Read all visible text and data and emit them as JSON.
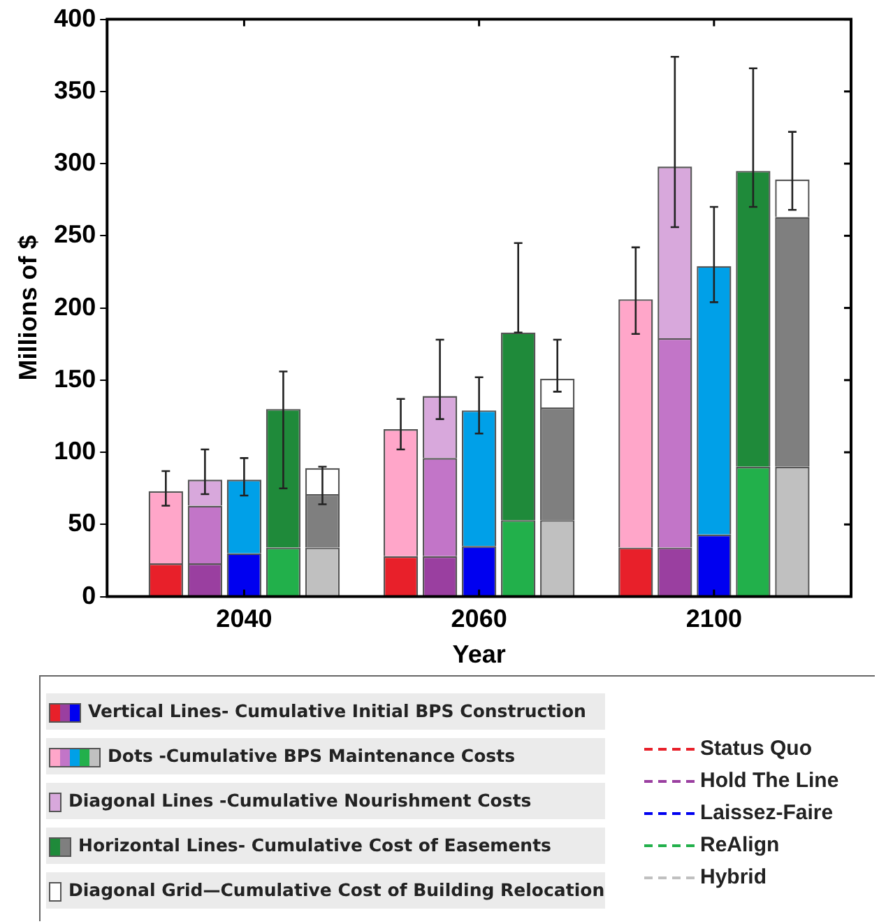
{
  "chart_data": {
    "type": "bar",
    "stacked": true,
    "ylabel": "Millions of $",
    "xlabel": "Year",
    "categories": [
      null,
      null,
      null,
      "2040",
      null,
      null,
      null,
      null,
      null,
      "2060",
      null,
      null,
      null,
      null,
      null,
      "2100",
      null,
      null,
      null
    ],
    "ylim": [
      0,
      400
    ],
    "yticks": [
      0,
      50,
      100,
      150,
      200,
      250,
      300,
      350,
      400
    ],
    "grid": false,
    "legend": "bottom",
    "series": [
      {
        "name": "Vertical Lines- Cumulative Initial BPS Construction",
        "values": [
          null,
          23,
          23,
          30,
          null,
          null,
          null,
          28,
          28,
          35,
          null,
          null,
          null,
          34,
          34,
          43,
          null,
          null,
          null
        ],
        "colors": [
          null,
          "#e8202a",
          "#9a3fa0",
          "#0000f0",
          null,
          null,
          null,
          "#e8202a",
          "#9a3fa0",
          "#0000f0",
          null,
          null,
          null,
          "#e8202a",
          "#9a3fa0",
          "#0000f0",
          null,
          null,
          null
        ]
      },
      {
        "name": "Dots  -Cumulative BPS Maintenance Costs",
        "values": [
          null,
          50,
          40,
          51,
          34,
          34,
          null,
          88,
          68,
          94,
          53,
          53,
          null,
          172,
          145,
          186,
          90,
          90,
          null
        ],
        "colors": [
          null,
          "#ffa6c9",
          "#c275c8",
          "#00a0e8",
          "#22b04b",
          "#c0c0c0",
          null,
          "#ffa6c9",
          "#c275c8",
          "#00a0e8",
          "#22b04b",
          "#c0c0c0",
          null,
          "#ffa6c9",
          "#c275c8",
          "#00a0e8",
          "#22b04b",
          "#c0c0c0",
          null
        ],
        "errors": [
          null,
          [
            63,
            87
          ],
          null,
          [
            70,
            96
          ],
          null,
          null,
          null,
          [
            102,
            137
          ],
          null,
          [
            113,
            152
          ],
          null,
          null,
          null,
          [
            182,
            242
          ],
          null,
          [
            204,
            270
          ],
          null,
          null,
          null
        ]
      },
      {
        "name": "Diagonal Lines -Cumulative Nourishment Costs",
        "values": [
          null,
          null,
          18,
          null,
          null,
          null,
          null,
          null,
          43,
          null,
          null,
          null,
          null,
          null,
          119,
          null,
          null,
          null,
          null
        ],
        "colors": [
          null,
          null,
          "#d8a8dc",
          null,
          null,
          null,
          null,
          null,
          "#d8a8dc",
          null,
          null,
          null,
          null,
          null,
          "#d8a8dc",
          null,
          null,
          null,
          null
        ],
        "errors": [
          null,
          null,
          [
            71,
            102
          ],
          null,
          null,
          null,
          null,
          null,
          [
            123,
            178
          ],
          null,
          null,
          null,
          null,
          null,
          [
            256,
            374
          ],
          null,
          null,
          null,
          null
        ]
      },
      {
        "name": "Horizontal Lines- Cumulative Cost of Easements",
        "values": [
          null,
          null,
          null,
          null,
          96,
          37,
          null,
          null,
          null,
          null,
          130,
          78,
          null,
          null,
          null,
          null,
          205,
          173,
          null
        ],
        "colors": [
          null,
          null,
          null,
          null,
          "#1f8a3a",
          "#7f7f7f",
          null,
          null,
          null,
          null,
          "#1f8a3a",
          "#7f7f7f",
          null,
          null,
          null,
          null,
          "#1f8a3a",
          "#7f7f7f",
          null
        ],
        "errors": [
          null,
          null,
          null,
          null,
          [
            75,
            156
          ],
          null,
          null,
          null,
          null,
          null,
          [
            183,
            245
          ],
          null,
          null,
          null,
          null,
          null,
          [
            270,
            366
          ],
          null,
          null
        ]
      },
      {
        "name": "Diagonal Grid—Cumulative Cost of Building Relocation",
        "values": [
          null,
          null,
          null,
          null,
          null,
          18,
          null,
          null,
          null,
          null,
          null,
          20,
          null,
          null,
          null,
          null,
          null,
          26,
          null
        ],
        "colors": [
          null,
          null,
          null,
          null,
          null,
          "#ffffff",
          null,
          null,
          null,
          null,
          null,
          "#ffffff",
          null,
          null,
          null,
          null,
          null,
          "#ffffff",
          null
        ],
        "errors": [
          null,
          null,
          null,
          null,
          null,
          [
            64,
            90
          ],
          null,
          null,
          null,
          null,
          null,
          [
            142,
            178
          ],
          null,
          null,
          null,
          null,
          null,
          [
            268,
            322
          ],
          null
        ]
      }
    ],
    "annotations": [
      "Status Quo",
      "Hold The Line",
      "Laissez-Faire",
      "ReAlign",
      "Hybrid"
    ]
  }
}
